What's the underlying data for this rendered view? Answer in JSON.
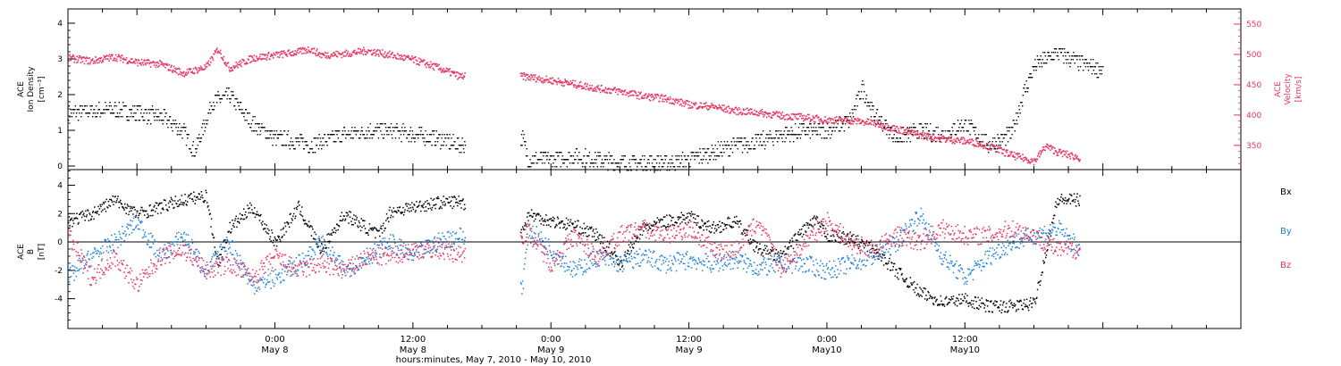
{
  "chart_data": [
    {
      "type": "scatter",
      "panel": "plasma",
      "ylabel_left": [
        "ACE",
        "Ion Density",
        "[cm⁻³]"
      ],
      "ylabel_right": [
        "ACE",
        "Velocity",
        "[km/s]"
      ],
      "xlim_hours": [
        -18,
        84
      ],
      "ylim_left": [
        -0.1,
        4.4
      ],
      "ylim_right": [
        310,
        575
      ],
      "yticks_left": [
        0,
        1,
        2,
        3,
        4
      ],
      "yticks_right": [
        350,
        400,
        450,
        500,
        550
      ],
      "colors": {
        "density": "#000000",
        "velocity": "#e8335f"
      },
      "data_gap_hours": [
        16.5,
        21.3
      ],
      "series": [
        {
          "axis": "left",
          "x": [
            -18,
            -14,
            -10,
            -8,
            -7,
            -5.5,
            -4,
            -2,
            0,
            2,
            3,
            4,
            5,
            6,
            8,
            10,
            12,
            14,
            16,
            21.5,
            22,
            24,
            26,
            28,
            30,
            32,
            34,
            36,
            38,
            40,
            42,
            44,
            46,
            48,
            50,
            51,
            52,
            54,
            56,
            58,
            60,
            61,
            62,
            64,
            65,
            66,
            68,
            70,
            72
          ],
          "values": [
            1.5,
            1.6,
            1.4,
            1.0,
            0.4,
            1.8,
            2.0,
            1.2,
            0.8,
            0.7,
            0.6,
            0.7,
            0.8,
            0.9,
            1.0,
            1.0,
            0.9,
            0.8,
            0.6,
            0.8,
            0.2,
            0.2,
            0.3,
            0.2,
            0.1,
            0.1,
            0.1,
            0.2,
            0.4,
            0.6,
            0.7,
            0.9,
            1.0,
            1.0,
            1.3,
            2.2,
            1.5,
            0.8,
            1.0,
            0.9,
            1.2,
            0.9,
            0.6,
            0.9,
            2.0,
            2.8,
            3.2,
            2.9,
            2.7
          ]
        },
        {
          "axis": "right",
          "x": [
            -18,
            -16,
            -14,
            -12,
            -10,
            -8,
            -6,
            -5,
            -4,
            -2,
            0,
            2,
            3,
            4,
            6,
            8,
            10,
            12,
            14,
            16,
            21.5,
            24,
            26,
            28,
            30,
            32,
            34,
            36,
            38,
            40,
            42,
            44,
            46,
            48,
            50,
            52,
            54,
            56,
            58,
            60,
            61,
            62,
            64,
            65,
            66,
            67,
            68,
            70
          ],
          "values": [
            495,
            490,
            497,
            488,
            485,
            470,
            480,
            510,
            478,
            495,
            500,
            505,
            510,
            500,
            502,
            507,
            500,
            492,
            480,
            465,
            465,
            458,
            452,
            445,
            440,
            432,
            428,
            418,
            415,
            408,
            405,
            400,
            397,
            393,
            392,
            388,
            378,
            368,
            362,
            358,
            355,
            350,
            335,
            330,
            325,
            350,
            340,
            330
          ]
        }
      ]
    },
    {
      "type": "scatter",
      "panel": "magnetic-field",
      "ylabel_left": [
        "ACE",
        "B",
        "[nT]"
      ],
      "xlim_hours": [
        -18,
        84
      ],
      "ylim_left": [
        -6.1,
        5.1
      ],
      "yticks_left": [
        -4,
        -2,
        0,
        2,
        4
      ],
      "zero_line": 0,
      "colors": {
        "Bx": "#000000",
        "By": "#1a80d9",
        "Bz": "#e8335f"
      },
      "data_gap_hours": [
        16.5,
        21.3
      ],
      "legend": [
        "Bx",
        "By",
        "Bz"
      ],
      "series": [
        {
          "name": "Bx",
          "x": [
            -18,
            -16,
            -14,
            -12,
            -10,
            -8,
            -6,
            -5,
            -4,
            -2,
            0,
            2,
            4,
            6,
            8,
            9,
            10,
            12,
            14,
            16,
            21.5,
            22,
            24,
            26,
            28,
            30,
            32,
            34,
            36,
            38,
            40,
            42,
            44,
            46,
            47,
            48,
            50,
            52,
            54,
            56,
            58,
            60,
            62,
            64,
            66,
            68,
            70
          ],
          "values": [
            1.5,
            2.0,
            3.0,
            2.0,
            2.5,
            3.0,
            3.3,
            -1.5,
            1.0,
            2.5,
            0.0,
            2.5,
            -0.5,
            2.0,
            1.0,
            0.5,
            2.2,
            2.5,
            2.8,
            2.9,
            0.8,
            2.0,
            1.5,
            1.2,
            0.5,
            -1.5,
            1.0,
            1.5,
            1.8,
            1.0,
            1.5,
            -0.5,
            -1.0,
            1.0,
            1.5,
            0.5,
            0.3,
            -0.5,
            -2.0,
            -3.5,
            -4.2,
            -4.0,
            -4.5,
            -4.5,
            -4.3,
            3.0,
            3.0
          ]
        },
        {
          "name": "By",
          "x": [
            -18,
            -16,
            -14,
            -12,
            -10,
            -8,
            -6,
            -4,
            -2,
            0,
            2,
            4,
            6,
            8,
            10,
            12,
            14,
            16,
            21.5,
            22,
            24,
            26,
            28,
            30,
            32,
            34,
            36,
            38,
            40,
            42,
            44,
            46,
            48,
            50,
            52,
            54,
            56,
            58,
            60,
            62,
            64,
            66,
            68,
            70
          ],
          "values": [
            -2.5,
            -1.0,
            0.0,
            1.5,
            -1.0,
            0.5,
            -2.0,
            0.0,
            -3.0,
            -2.5,
            -1.5,
            0.0,
            -2.0,
            -1.0,
            0.0,
            -1.0,
            0.0,
            0.5,
            -3.0,
            1.0,
            -0.5,
            -2.0,
            -1.0,
            -1.5,
            -1.0,
            -1.5,
            -1.2,
            -1.5,
            -1.2,
            -1.8,
            -1.5,
            -1.5,
            -2.0,
            -1.5,
            -1.0,
            0.0,
            2.0,
            -1.0,
            -2.5,
            -1.0,
            0.0,
            0.5,
            1.0,
            -0.5
          ]
        },
        {
          "name": "Bz",
          "x": [
            -18,
            -16,
            -14,
            -12,
            -10,
            -8,
            -6,
            -4,
            -2,
            0,
            2,
            4,
            6,
            8,
            10,
            12,
            14,
            16,
            21.5,
            22,
            24,
            26,
            28,
            30,
            32,
            34,
            36,
            38,
            40,
            42,
            44,
            46,
            48,
            50,
            52,
            54,
            56,
            58,
            60,
            62,
            64,
            66,
            68,
            70
          ],
          "values": [
            0.5,
            -2.5,
            -1.0,
            -3.0,
            -1.0,
            -0.5,
            -2.0,
            -1.5,
            -2.5,
            -1.0,
            -2.0,
            -1.5,
            -2.0,
            -1.0,
            -1.0,
            -0.5,
            -0.5,
            -0.8,
            0.5,
            0.8,
            -1.5,
            0.5,
            -1.0,
            0.5,
            1.0,
            0.5,
            1.0,
            -0.5,
            -0.5,
            1.5,
            -2.0,
            0.0,
            1.5,
            0.0,
            -0.5,
            0.5,
            0.0,
            1.0,
            0.5,
            0.5,
            1.0,
            0.5,
            -0.5,
            -0.5
          ]
        }
      ]
    }
  ],
  "xaxis": {
    "label": "hours:minutes, May  7, 2010 - May 10, 2010",
    "ticks": [
      {
        "hour": 0,
        "time": "0:00",
        "date": "May 8"
      },
      {
        "hour": 12,
        "time": "12:00",
        "date": "May 8"
      },
      {
        "hour": 24,
        "time": "0:00",
        "date": "May 9"
      },
      {
        "hour": 36,
        "time": "12:00",
        "date": "May 9"
      },
      {
        "hour": 48,
        "time": "0:00",
        "date": "May10"
      },
      {
        "hour": 60,
        "time": "12:00",
        "date": "May10"
      }
    ]
  }
}
